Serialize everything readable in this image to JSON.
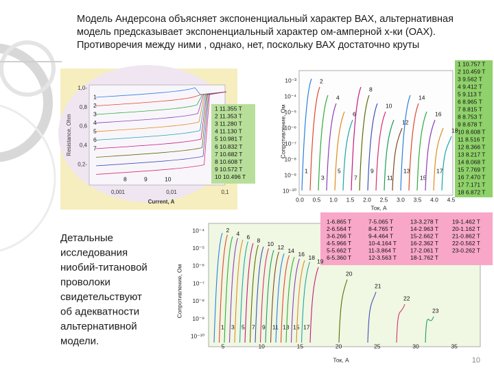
{
  "title": [
    "Модель Андерсона объясняет  экспоненциальный характер ВАХ,  альтернативная",
    "модель предсказывает экспоненциальный характер ом-амперной х-ки (ОАХ).",
    "Противоречия между  ними , однако, нет, поскольку ВАХ достаточно круты"
  ],
  "side_text": [
    "Детальные",
    "исследования",
    "ниобий-титановой",
    "проволоки",
    "свидетельствуют",
    "об адекватности",
    "альтернативной",
    "модели."
  ],
  "page_number": "10",
  "figure1": {
    "ylabel": "Resistance, Ohm",
    "xlabel": "Current, A",
    "yticks": [
      "1,0-",
      "0,8",
      "0,6",
      "0,4",
      "0,2-"
    ],
    "xticks": [
      "0,001",
      "0,01",
      "0,1"
    ],
    "legend": [
      "1  11.355 T",
      "2  11.353 T",
      "3  11.280 T",
      "4  11.130 T",
      "5  10.981 T",
      "6  10.832 T",
      "7  10.682 T",
      "8  10.608 T",
      "9  10.572 T",
      "10  10.496 T"
    ],
    "curve_labels": [
      "1",
      "2",
      "3",
      "4",
      "5",
      "6",
      "7",
      "8",
      "9",
      "10"
    ]
  },
  "figure2": {
    "ylabel": "Сопротивление, Ом",
    "xlabel": "Ток, А",
    "yticks": [
      "10⁻³",
      "10⁻⁴",
      "10⁻⁵",
      "10⁻⁶",
      "10⁻⁷",
      "10⁻⁸",
      "10⁻⁹",
      "10⁻¹⁰"
    ],
    "xticks": [
      "0.0",
      "0.5",
      "1.0",
      "1.5",
      "2.0",
      "2.5",
      "3.0",
      "3.5",
      "4.0",
      "4.5"
    ],
    "legend": [
      "1 10.757 T",
      "2 10.459 T",
      "3  9.562 T",
      "4  9.412 T",
      "5  9.113 T",
      "6  8.965 T",
      "7  8.815 T",
      "8  8.753 T",
      "9  8.678 T",
      "10  8.608 T",
      "11  8.516 T",
      "12  8.366 T",
      "13  8.217 T",
      "14  8.068 T",
      "15  7.769 T",
      "16  7.470 T",
      "17  7.171 T",
      "18  6.872 T"
    ],
    "curve_labels": [
      "1",
      "2",
      "3",
      "4",
      "5",
      "6",
      "7",
      "8",
      "9",
      "10",
      "11",
      "12",
      "13",
      "14",
      "15",
      "16",
      "17",
      "18"
    ]
  },
  "figure3": {
    "ylabel": "Сопротивление, Ом",
    "xlabel": "Ток, А",
    "yticks": [
      "10⁻⁴",
      "10⁻⁵",
      "10⁻⁶",
      "10⁻⁷",
      "10⁻⁸",
      "10⁻⁹",
      "10⁻¹⁰"
    ],
    "xticks": [
      "5",
      "10",
      "15",
      "20",
      "25",
      "30",
      "35"
    ],
    "legend": [
      "1-6.865 T",
      "7-5.065 T",
      "13-3.278 T",
      "19-1.462 T",
      "2-6.564 T",
      "8-4.765 T",
      "14-2.963 T",
      "20-1.162 T",
      "3-6.266 T",
      "9-4.464 T",
      "15-2.662 T",
      "21-0.862 T",
      "4-5.966 T",
      "10-4.164 T",
      "16-2.362 T",
      "22-0.562 T",
      "5-5.662 T",
      "11-3.864 T",
      "17-2.061 T",
      "23-0.262 T",
      "6-5.360 T",
      "12-3.563 T",
      "18-1.762 T"
    ],
    "curve_labels": [
      "1",
      "2",
      "3",
      "4",
      "5",
      "6",
      "7",
      "8",
      "9",
      "10",
      "11",
      "12",
      "13",
      "14",
      "15",
      "16",
      "17",
      "18",
      "19",
      "20",
      "21",
      "22",
      "23"
    ]
  }
}
